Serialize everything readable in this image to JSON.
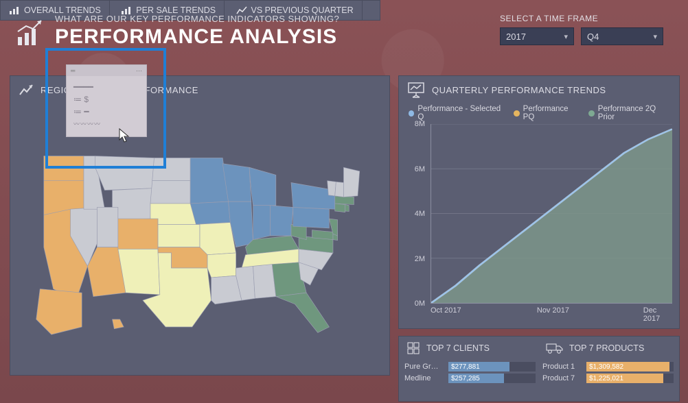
{
  "header": {
    "subtitle": "WHAT ARE OUR KEY PERFORMANCE INDICATORS SHOWING?",
    "title": "PERFORMANCE ANALYSIS",
    "time_label": "SELECT A TIME FRAME",
    "year_selected": "2017",
    "quarter_selected": "Q4"
  },
  "map_panel": {
    "title": "REGIONAL SALES PERFORMANCE",
    "colors": {
      "cat1": "#e8b06a",
      "cat2": "#c9cbd2",
      "cat3": "#6c93bd",
      "cat4": "#6f977e",
      "cat5": "#eff0b8",
      "border": "#9a9db0",
      "panel_bg": "#5b5e72"
    },
    "state_categories": {
      "WA": "cat1",
      "OR": "cat1",
      "CA": "cat1",
      "NV": "cat2",
      "ID": "cat2",
      "MT": "cat2",
      "WY": "cat2",
      "UT": "cat2",
      "AZ": "cat1",
      "NM": "cat5",
      "CO": "cat1",
      "ND": "cat2",
      "SD": "cat2",
      "NE": "cat5",
      "KS": "cat5",
      "OK": "cat1",
      "TX": "cat5",
      "MN": "cat3",
      "IA": "cat3",
      "MO": "cat5",
      "AR": "cat5",
      "LA": "cat2",
      "WI": "cat3",
      "IL": "cat3",
      "MI": "cat3",
      "IN": "cat3",
      "OH": "cat3",
      "KY": "cat4",
      "TN": "cat5",
      "MS": "cat2",
      "AL": "cat2",
      "GA": "cat4",
      "FL": "cat4",
      "SC": "cat2",
      "NC": "cat2",
      "VA": "cat4",
      "WV": "cat4",
      "MD": "cat4",
      "DE": "cat4",
      "PA": "cat3",
      "NJ": "cat4",
      "NY": "cat3",
      "CT": "cat4",
      "RI": "cat4",
      "MA": "cat4",
      "VT": "cat2",
      "NH": "cat2",
      "ME": "cat2",
      "AK": "cat1",
      "HI": "cat1"
    }
  },
  "trend_panel": {
    "title": "QUARTERLY PERFORMANCE TRENDS",
    "legend": [
      {
        "label": "Performance - Selected Q",
        "color": "#8fb9e4"
      },
      {
        "label": "Performance PQ",
        "color": "#e5b55f"
      },
      {
        "label": "Performance 2Q Prior",
        "color": "#7ea992"
      }
    ],
    "y_ticks": [
      "8M",
      "6M",
      "4M",
      "2M",
      "0M"
    ],
    "x_ticks": [
      "Oct 2017",
      "Nov 2017",
      "Dec 2017"
    ],
    "ylim": [
      0,
      8000000
    ],
    "area_color": "#7c9589",
    "line1_color": "#e5b55f",
    "line2_color": "#9cc3ea",
    "series_points": {
      "x": [
        0,
        0.1,
        0.2,
        0.3,
        0.4,
        0.5,
        0.6,
        0.7,
        0.8,
        0.9,
        1.0
      ],
      "area": [
        0.0,
        0.1,
        0.22,
        0.33,
        0.44,
        0.55,
        0.66,
        0.77,
        0.88,
        0.96,
        1.02
      ],
      "line1": [
        0.0,
        0.1,
        0.22,
        0.33,
        0.44,
        0.55,
        0.66,
        0.77,
        0.88,
        0.96,
        1.02
      ],
      "line2": [
        0.0,
        0.1,
        0.22,
        0.33,
        0.44,
        0.55,
        0.66,
        0.77,
        0.88,
        0.96,
        1.02
      ]
    }
  },
  "top7_panel": {
    "clients_title": "TOP 7 CLIENTS",
    "products_title": "TOP 7 PRODUCTS",
    "bar_color_clients": "#6c93bd",
    "bar_color_products": "#e8b06a",
    "clients": [
      {
        "label": "Pure Gr…",
        "value": "$277,881",
        "pct": 0.7
      },
      {
        "label": "Medline",
        "value": "$257,285",
        "pct": 0.64
      }
    ],
    "products": [
      {
        "label": "Product 1",
        "value": "$1,309,582",
        "pct": 0.95
      },
      {
        "label": "Product 7",
        "value": "$1,225,021",
        "pct": 0.88
      }
    ]
  },
  "footer_tabs": {
    "overall": "OVERALL TRENDS",
    "persale": "PER SALE TRENDS",
    "vsprev": "VS PREVIOUS QUARTER"
  }
}
